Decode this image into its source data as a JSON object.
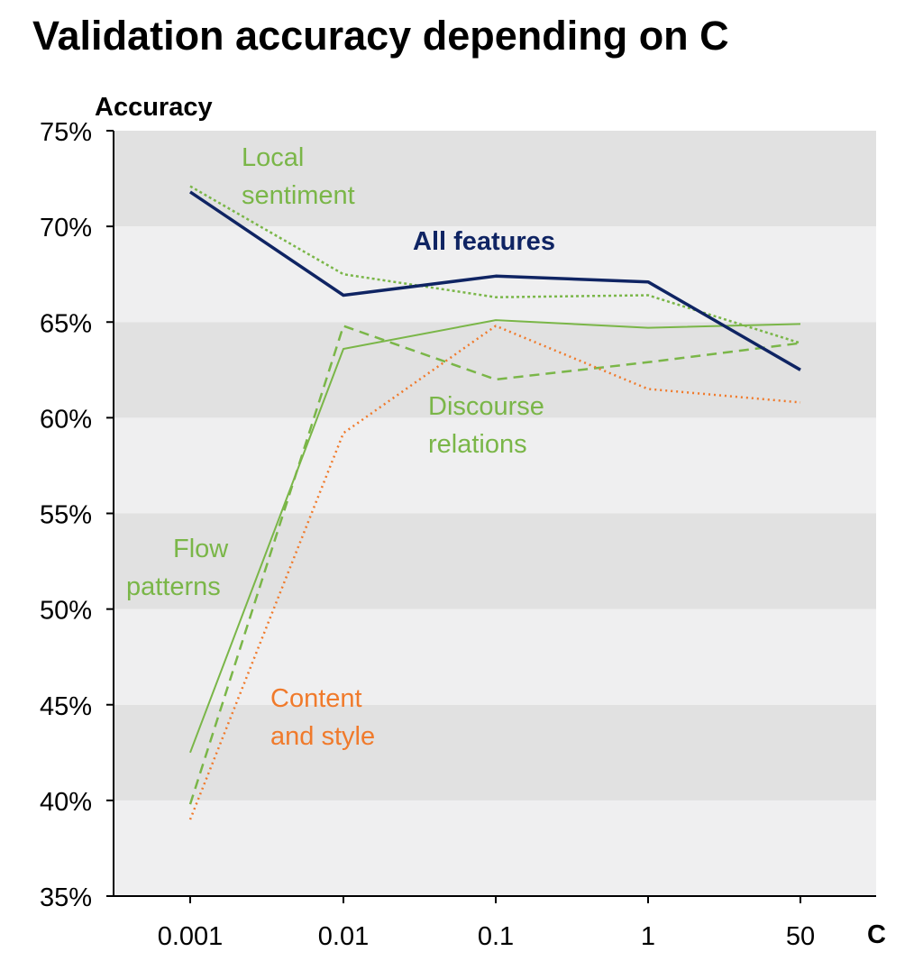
{
  "chart_data": {
    "type": "line",
    "title": "Validation accuracy depending on C",
    "ylabel": "Accuracy",
    "xlabel": "C",
    "categories": [
      "0.001",
      "0.01",
      "0.1",
      "1",
      "50"
    ],
    "ylim": [
      35,
      75
    ],
    "yticks": [
      "35%",
      "40%",
      "45%",
      "50%",
      "55%",
      "60%",
      "65%",
      "70%",
      "75%"
    ],
    "grid": "alternating horizontal bands",
    "legend": "inline labels",
    "series": [
      {
        "name": "All features",
        "label_lines": [
          "All features"
        ],
        "values": [
          71.8,
          66.4,
          67.4,
          67.1,
          62.5
        ],
        "color": "#0f2463",
        "style": "solid-thick"
      },
      {
        "name": "Local sentiment",
        "label_lines": [
          "Local",
          "sentiment"
        ],
        "values": [
          72.1,
          67.5,
          66.3,
          66.4,
          63.9
        ],
        "color": "#7ab648",
        "style": "dotted"
      },
      {
        "name": "Discourse relations",
        "label_lines": [
          "Discourse",
          "relations"
        ],
        "values": [
          39.8,
          64.8,
          62.0,
          62.9,
          63.9
        ],
        "color": "#7ab648",
        "style": "dashed"
      },
      {
        "name": "Flow patterns",
        "label_lines": [
          "Flow",
          "patterns"
        ],
        "values": [
          42.5,
          63.6,
          65.1,
          64.7,
          64.9
        ],
        "color": "#7ab648",
        "style": "solid-thin"
      },
      {
        "name": "Content and style",
        "label_lines": [
          "Content",
          "and style"
        ],
        "values": [
          39.0,
          59.2,
          64.8,
          61.5,
          60.8
        ],
        "color": "#f07a2b",
        "style": "dotted-fine"
      }
    ]
  }
}
